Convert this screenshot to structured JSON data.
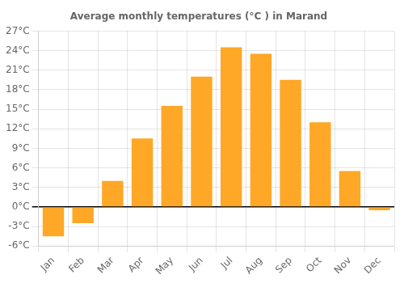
{
  "chart_data": {
    "type": "bar",
    "title": "Average monthly temperatures (°C ) in Marand",
    "categories": [
      "Jan",
      "Feb",
      "Mar",
      "Apr",
      "May",
      "Jun",
      "Jul",
      "Aug",
      "Sep",
      "Oct",
      "Nov",
      "Dec"
    ],
    "values": [
      -4.5,
      -2.5,
      4.0,
      10.5,
      15.5,
      20.0,
      24.5,
      23.5,
      19.5,
      13.0,
      5.5,
      -0.5
    ],
    "color": "#FFA726",
    "ylim": [
      -6,
      27
    ],
    "yticks": [
      {
        "value": -6,
        "label": "-6°C"
      },
      {
        "value": -3,
        "label": "-3°C"
      },
      {
        "value": 0,
        "label": "0°C"
      },
      {
        "value": 3,
        "label": "3°C"
      },
      {
        "value": 6,
        "label": "6°C"
      },
      {
        "value": 9,
        "label": "9°C"
      },
      {
        "value": 12,
        "label": "12°C"
      },
      {
        "value": 15,
        "label": "15°C"
      },
      {
        "value": 18,
        "label": "18°C"
      },
      {
        "value": 21,
        "label": "21°C"
      },
      {
        "value": 24,
        "label": "24°C"
      },
      {
        "value": 27,
        "label": "27°C"
      }
    ],
    "grid": true
  }
}
